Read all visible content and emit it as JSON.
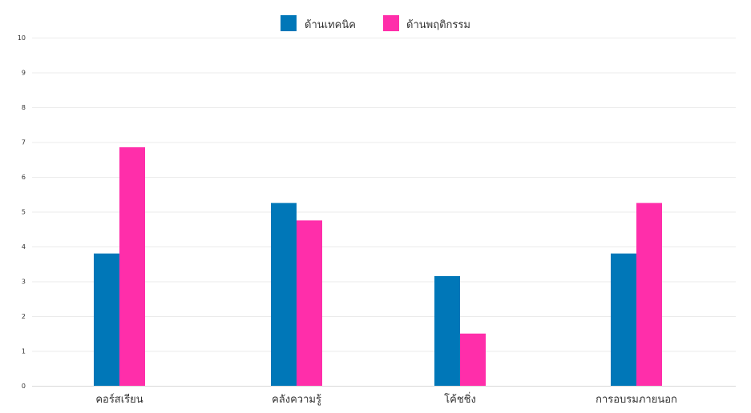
{
  "chart_data": {
    "type": "bar",
    "categories": [
      "คอร์สเรียน",
      "คลังความรู้",
      "โค้ชชิ่ง",
      "การอบรมภายนอก"
    ],
    "series": [
      {
        "name": "ด้านเทคนิค",
        "values": [
          3.8,
          5.25,
          3.15,
          3.8
        ]
      },
      {
        "name": "ด้านพฤติกรรม",
        "values": [
          6.85,
          4.75,
          1.5,
          5.25
        ]
      }
    ],
    "ylim": [
      0,
      10
    ],
    "yticks": [
      "0",
      "1",
      "2",
      "3",
      "4",
      "5",
      "6",
      "7",
      "8",
      "9",
      "10"
    ],
    "grid": true,
    "legend_position": "top-center",
    "colors": [
      "#0077b8",
      "#ff2eaa"
    ]
  }
}
